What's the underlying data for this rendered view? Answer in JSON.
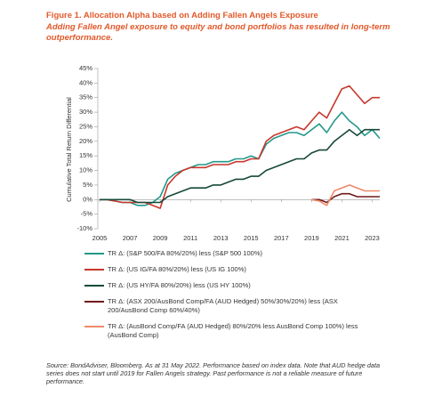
{
  "chart_data": {
    "type": "line",
    "title": "Figure 1. Allocation Alpha based on Adding Fallen Angels Exposure",
    "subtitle": "Adding Fallen Angel exposure to equity and bond portfolios has resulted in long-term outperformance.",
    "y_label": "Cumulative Total Return Differential",
    "source": "Source: BondAdviser, Bloomberg. As at 31 May 2022. Performance based on index data. Note that AUD hedge data series does not start until 2019 for Fallen Angels strategy. Past performance is not a reliable measure of future performance.",
    "x": [
      2005,
      2005.5,
      2006,
      2006.5,
      2007,
      2007.5,
      2008,
      2008.5,
      2009,
      2009.5,
      2010,
      2010.5,
      2011,
      2011.5,
      2012,
      2012.5,
      2013,
      2013.5,
      2014,
      2014.5,
      2015,
      2015.5,
      2016,
      2016.5,
      2017,
      2017.5,
      2018,
      2018.5,
      2019,
      2019.5,
      2020,
      2020.5,
      2021,
      2021.5,
      2022,
      2022.5,
      2023,
      2023.5
    ],
    "xlim": [
      2005,
      2023.5
    ],
    "xticks": [
      2005,
      2007,
      2009,
      2011,
      2013,
      2015,
      2017,
      2019,
      2021,
      2023
    ],
    "ylim": [
      -10,
      45
    ],
    "yticks": [
      {
        "value": -10,
        "label": "-10%"
      },
      {
        "value": -5,
        "label": "-5%"
      },
      {
        "value": 0,
        "label": "0%"
      },
      {
        "value": 5,
        "label": "5%"
      },
      {
        "value": 10,
        "label": "10%"
      },
      {
        "value": 15,
        "label": "15%"
      },
      {
        "value": 20,
        "label": "20%"
      },
      {
        "value": 25,
        "label": "25%"
      },
      {
        "value": 30,
        "label": "30%"
      },
      {
        "value": 35,
        "label": "35%"
      },
      {
        "value": 40,
        "label": "40%"
      },
      {
        "value": 45,
        "label": "45%"
      }
    ],
    "series": [
      {
        "name": "TR Δ: (S&P 500/FA 80%/20%) less (S&P 500 100%)",
        "color": "#22998a",
        "values": [
          0,
          0,
          -0.5,
          -1,
          -1,
          -2,
          -2,
          -1,
          1,
          7,
          9,
          10,
          11,
          12,
          12,
          13,
          13,
          13,
          14,
          14,
          15,
          14,
          19,
          21,
          22,
          23,
          23,
          22,
          24,
          26,
          23,
          27,
          30,
          27,
          25,
          22,
          24,
          21
        ]
      },
      {
        "name": "TR Δ: (US IG/FA 80%/20%) less (US IG 100%)",
        "color": "#c8372d",
        "values": [
          0,
          0,
          -0.5,
          -1,
          -1,
          -1,
          -1,
          -2,
          -3,
          5,
          8,
          10,
          11,
          11,
          11,
          12,
          12,
          12,
          13,
          13,
          14,
          14,
          20,
          22,
          23,
          24,
          25,
          24,
          27,
          30,
          28,
          33,
          38,
          39,
          36,
          33,
          35,
          35
        ]
      },
      {
        "name": "TR Δ: (US HY/FA 80%/20%) less (US HY 100%)",
        "color": "#16483a",
        "values": [
          0,
          0,
          0,
          0,
          0,
          -1,
          -1,
          -1,
          -1,
          1,
          2,
          3,
          4,
          4,
          4,
          5,
          5,
          6,
          7,
          7,
          8,
          8,
          10,
          11,
          12,
          13,
          14,
          14,
          16,
          17,
          17,
          20,
          22,
          24,
          22,
          24,
          24,
          24
        ]
      },
      {
        "name": "TR Δ: (ASX 200/AusBond Comp/FA (AUD Hedged) 50%/30%/20%) less (ASX 200/AusBond Comp 60%/40%)",
        "color": "#6e1a1a",
        "values": [
          null,
          null,
          null,
          null,
          null,
          null,
          null,
          null,
          null,
          null,
          null,
          null,
          null,
          null,
          null,
          null,
          null,
          null,
          null,
          null,
          null,
          null,
          null,
          null,
          null,
          null,
          null,
          null,
          0,
          0,
          -1,
          1,
          2,
          2,
          1,
          1,
          1,
          1
        ]
      },
      {
        "name": "TR Δ: (AusBond Comp/FA (AUD Hedged) 80%/20% less AusBond Comp 100%) less (AusBond Comp)",
        "color": "#ef8a6a",
        "values": [
          null,
          null,
          null,
          null,
          null,
          null,
          null,
          null,
          null,
          null,
          null,
          null,
          null,
          null,
          null,
          null,
          null,
          null,
          null,
          null,
          null,
          null,
          null,
          null,
          null,
          null,
          null,
          null,
          0,
          -0.5,
          -2,
          3,
          4,
          5,
          4,
          3,
          3,
          3
        ]
      }
    ]
  }
}
